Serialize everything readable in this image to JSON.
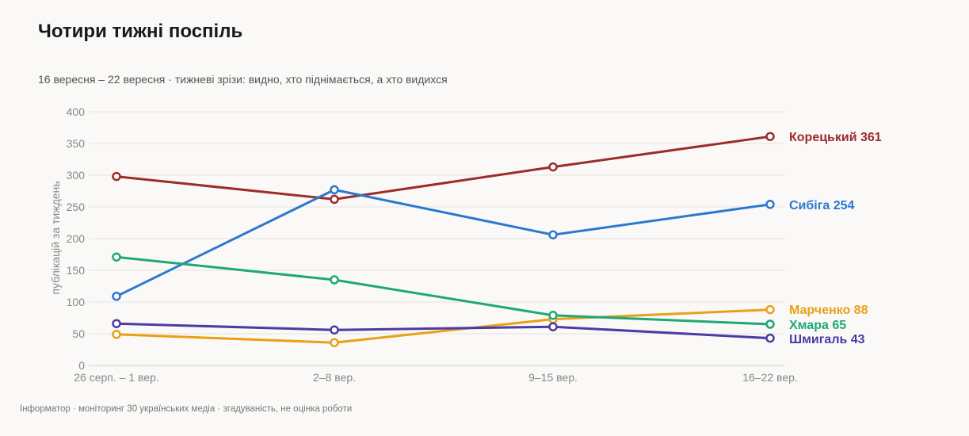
{
  "header": {
    "title": "Чотири тижні поспіль",
    "subtitle": "16 вересня – 22 вересня · тижневі зрізи: видно, хто піднімається, а хто видихся"
  },
  "footer": {
    "source": "Інформатор · моніторинг 30 українських медіа · згадуваність, не оцінка роботи"
  },
  "chart_data": {
    "type": "line",
    "title": "Чотири тижні поспіль",
    "subtitle": "16 вересня – 22 вересня · тижневі зрізи: видно, хто піднімається, а хто видихся",
    "xlabel": "",
    "ylabel": "публікацій за тиждень",
    "categories": [
      "26 серп. – 1 вер.",
      "2–8 вер.",
      "9–15 вер.",
      "16–22 вер."
    ],
    "ylim": [
      0,
      400
    ],
    "yticks": [
      0,
      50,
      100,
      150,
      200,
      250,
      300,
      350,
      400
    ],
    "grid": true,
    "legend": "end labels",
    "series": [
      {
        "name": "Корецький",
        "color": "#9b2c2c",
        "values": [
          298,
          262,
          313,
          361
        ],
        "end_label": "Корецький 361"
      },
      {
        "name": "Сибіга",
        "color": "#2b78cf",
        "values": [
          109,
          277,
          206,
          254
        ],
        "end_label": "Сибіга 254"
      },
      {
        "name": "Марченко",
        "color": "#e8a117",
        "values": [
          49,
          36,
          73,
          88
        ],
        "end_label": "Марченко 88"
      },
      {
        "name": "Хмара",
        "color": "#1fa876",
        "values": [
          171,
          135,
          79,
          65
        ],
        "end_label": "Хмара 65"
      },
      {
        "name": "Шмигаль",
        "color": "#4c3aa5",
        "values": [
          66,
          56,
          61,
          43
        ],
        "end_label": "Шмигаль 43"
      }
    ]
  }
}
